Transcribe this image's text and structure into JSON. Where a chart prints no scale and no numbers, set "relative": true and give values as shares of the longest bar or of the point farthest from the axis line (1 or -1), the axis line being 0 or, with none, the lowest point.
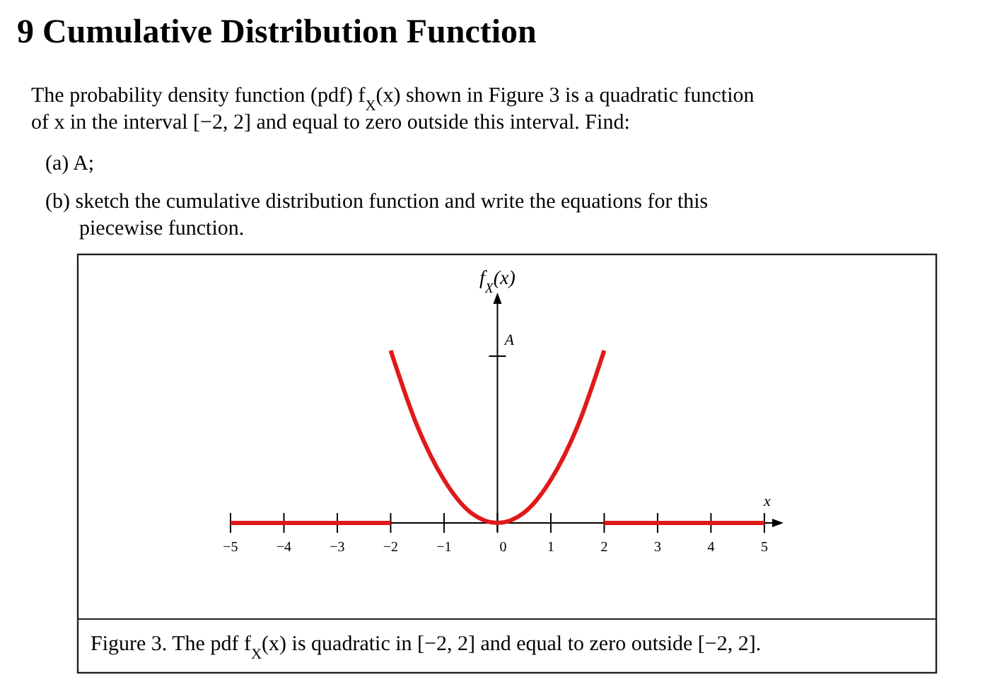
{
  "chart_data": {
    "type": "line",
    "title": "9   Cumulative Distribution Function",
    "annotations": [
      "The probability density function (pdf) f$_{X}$(x) shown in Figure 3 is a quadratic function of x in the interval [−2, 2] and equal to zero outside this interval. Find:",
      "(a) A;",
      "(b) sketch the cumulative distribution function and write the equations for this piecewise function.",
      "Figure 3. The pdf f$_{X}$(x) is quadratic in [−2, 2] and equal to zero outside [−2, 2].",
      "A"
    ],
    "ylabel": "f$_{X}$(x)",
    "xlabel": "x",
    "relative": true,
    "xlim": [
      -5,
      5.2
    ],
    "xticks": [
      -5,
      -4,
      -3,
      -2,
      -1,
      0,
      1,
      2,
      3,
      4,
      5
    ],
    "series": [
      {
        "color": "#e0191b",
        "x": [
          -5,
          -2
        ],
        "values": [
          0,
          0
        ]
      },
      {
        "color": "#e0191b",
        "x": [
          -2,
          -1.5,
          -1,
          -0.5,
          0,
          0.5,
          1,
          1.5,
          2
        ],
        "values": [
          1,
          0.56,
          0.25,
          0.06,
          0,
          0.06,
          0.25,
          0.56,
          1
        ]
      },
      {
        "color": "#e0191b",
        "x": [
          2,
          5
        ],
        "values": [
          0,
          0
        ]
      }
    ],
    "line_style": "solid"
  }
}
